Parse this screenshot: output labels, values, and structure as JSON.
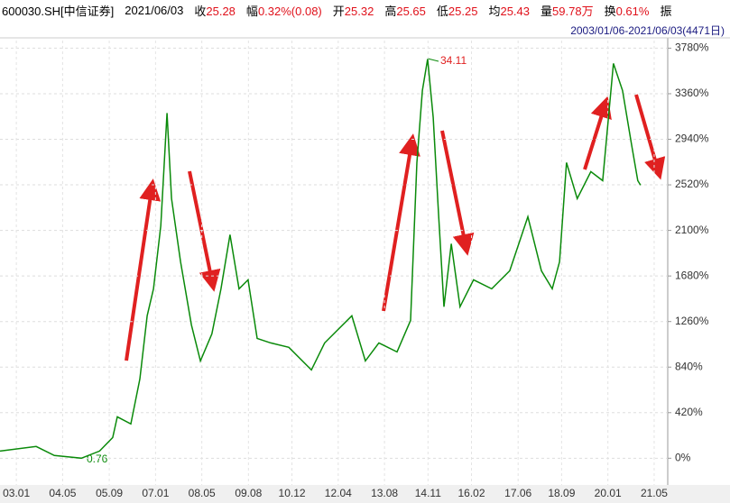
{
  "header": {
    "code": "600030.SH[中信证券]",
    "date": "2021/06/03",
    "items": [
      {
        "label": "收",
        "value": "25.28"
      },
      {
        "label": "幅",
        "value": "0.32%(0.08)"
      },
      {
        "label": "开",
        "value": "25.32"
      },
      {
        "label": "高",
        "value": "25.65"
      },
      {
        "label": "低",
        "value": "25.25"
      },
      {
        "label": "均",
        "value": "25.43"
      },
      {
        "label": "量",
        "value": "59.78万"
      },
      {
        "label": "换",
        "value": "0.61%"
      }
    ],
    "last": "振",
    "range": "2003/01/06-2021/06/03(4471日)"
  },
  "chart_data": {
    "type": "line",
    "annotations": [
      "34.11",
      "0.76"
    ],
    "series": [
      {
        "name": "600030.SH",
        "color": "#0a8a0a",
        "x": [
          2002.53,
          2003.57,
          2004.09,
          2004.87,
          2005.39,
          2005.77,
          2005.9,
          2006.29,
          2006.55,
          2006.76,
          2006.94,
          2007.15,
          2007.33,
          2007.46,
          2007.72,
          2008.03,
          2008.29,
          2008.62,
          2008.88,
          2009.14,
          2009.4,
          2009.66,
          2009.92,
          2010.31,
          2010.83,
          2011.48,
          2011.86,
          2012.64,
          2013.03,
          2013.42,
          2013.94,
          2014.33,
          2014.51,
          2014.67,
          2014.82,
          2014.98,
          2015.13,
          2015.29,
          2015.5,
          2015.75,
          2016.14,
          2016.66,
          2017.18,
          2017.7,
          2018.09,
          2018.4,
          2018.61,
          2018.81,
          2019.12,
          2019.51,
          2019.85,
          2020.16,
          2020.42,
          2020.68,
          2020.86,
          2020.94
        ],
        "values": [
          66,
          108,
          25,
          0,
          66,
          191,
          382,
          316,
          731,
          1313,
          1562,
          2143,
          3182,
          2393,
          1811,
          1230,
          897,
          1146,
          1562,
          2060,
          1562,
          1645,
          1105,
          1063,
          1022,
          814,
          1063,
          1313,
          897,
          1063,
          980,
          1271,
          2725,
          3390,
          3680,
          3140,
          2268,
          1396,
          1977,
          1396,
          1645,
          1562,
          1728,
          2226,
          1728,
          1562,
          1811,
          2725,
          2393,
          2642,
          2559,
          3639,
          3390,
          2891,
          2559,
          2517
        ]
      }
    ],
    "xlim": [
      2002.53,
      2021.72
    ],
    "xticks": [
      {
        "value": 2003.0,
        "label": "03.01"
      },
      {
        "value": 2004.33,
        "label": "04.05"
      },
      {
        "value": 2005.67,
        "label": "05.09"
      },
      {
        "value": 2007.0,
        "label": "07.01"
      },
      {
        "value": 2008.33,
        "label": "08.05"
      },
      {
        "value": 2009.67,
        "label": "09.08"
      },
      {
        "value": 2010.92,
        "label": "10.12"
      },
      {
        "value": 2012.25,
        "label": "12.04"
      },
      {
        "value": 2013.58,
        "label": "13.08"
      },
      {
        "value": 2014.83,
        "label": "14.11"
      },
      {
        "value": 2016.08,
        "label": "16.02"
      },
      {
        "value": 2017.42,
        "label": "17.06"
      },
      {
        "value": 2018.67,
        "label": "18.09"
      },
      {
        "value": 2020.0,
        "label": "20.01"
      },
      {
        "value": 2021.33,
        "label": "21.05"
      }
    ],
    "ylim": [
      -180,
      3850
    ],
    "yticks": [
      {
        "value": 0,
        "label": "0%"
      },
      {
        "value": 420,
        "label": "420%"
      },
      {
        "value": 840,
        "label": "840%"
      },
      {
        "value": 1260,
        "label": "1260%"
      },
      {
        "value": 1680,
        "label": "1680%"
      },
      {
        "value": 2100,
        "label": "2100%"
      },
      {
        "value": 2520,
        "label": "2520%"
      },
      {
        "value": 2940,
        "label": "2940%"
      },
      {
        "value": 3360,
        "label": "3360%"
      },
      {
        "value": 3780,
        "label": "3780%"
      }
    ],
    "grid": true
  }
}
